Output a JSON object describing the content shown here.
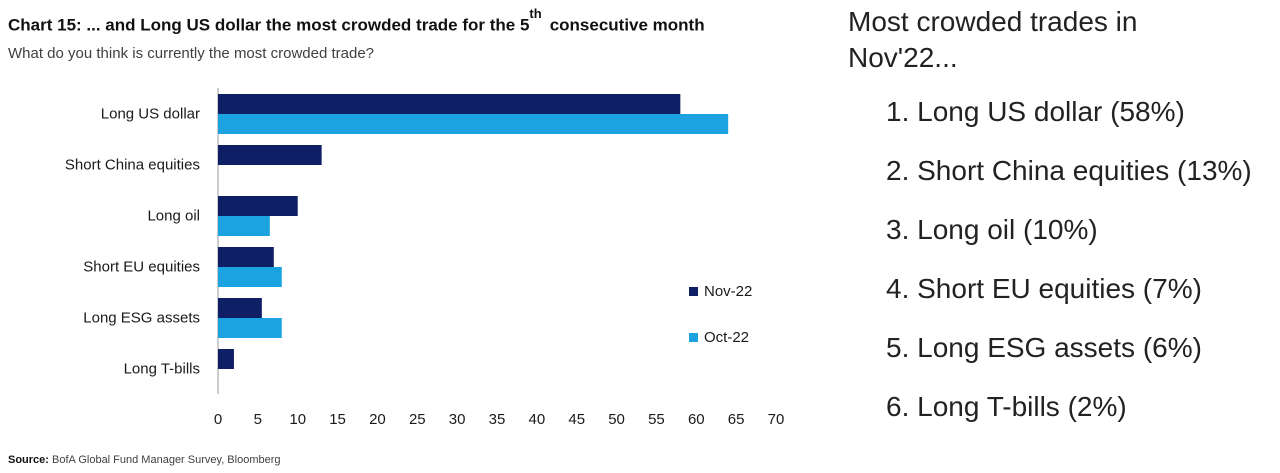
{
  "title": {
    "prefix": "Chart 15: ... and Long US dollar the most crowded trade for the 5",
    "superscript": "th",
    "suffix": "consecutive month"
  },
  "subtitle": "What do you think is currently the most crowded trade?",
  "source": {
    "label": "Source:",
    "text": "BofA Global Fund Manager Survey, Bloomberg"
  },
  "panel": {
    "heading_line1": "Most crowded trades in",
    "heading_line2": "Nov'22...",
    "items": [
      "1. Long US dollar (58%)",
      "2. Short China equities (13%)",
      "3. Long oil (10%)",
      "4. Short EU equities (7%)",
      "5. Long ESG assets (6%)",
      "6. Long T-bills (2%)"
    ]
  },
  "chart_data": {
    "type": "bar",
    "orientation": "horizontal",
    "categories": [
      "Long US dollar",
      "Short China equities",
      "Long oil",
      "Short EU equities",
      "Long ESG assets",
      "Long T-bills"
    ],
    "series": [
      {
        "name": "Nov-22",
        "color": "#0e1f66",
        "values": [
          58,
          13,
          10,
          7,
          5.5,
          2
        ]
      },
      {
        "name": "Oct-22",
        "color": "#1aa3e0",
        "values": [
          64,
          null,
          6.5,
          8,
          8,
          null
        ]
      }
    ],
    "xlim": [
      0,
      70
    ],
    "xticks": [
      "0",
      "5",
      "10",
      "15",
      "20",
      "25",
      "30",
      "35",
      "40",
      "45",
      "50",
      "55",
      "60",
      "65",
      "70"
    ],
    "grid": false,
    "legend_position": "right"
  }
}
